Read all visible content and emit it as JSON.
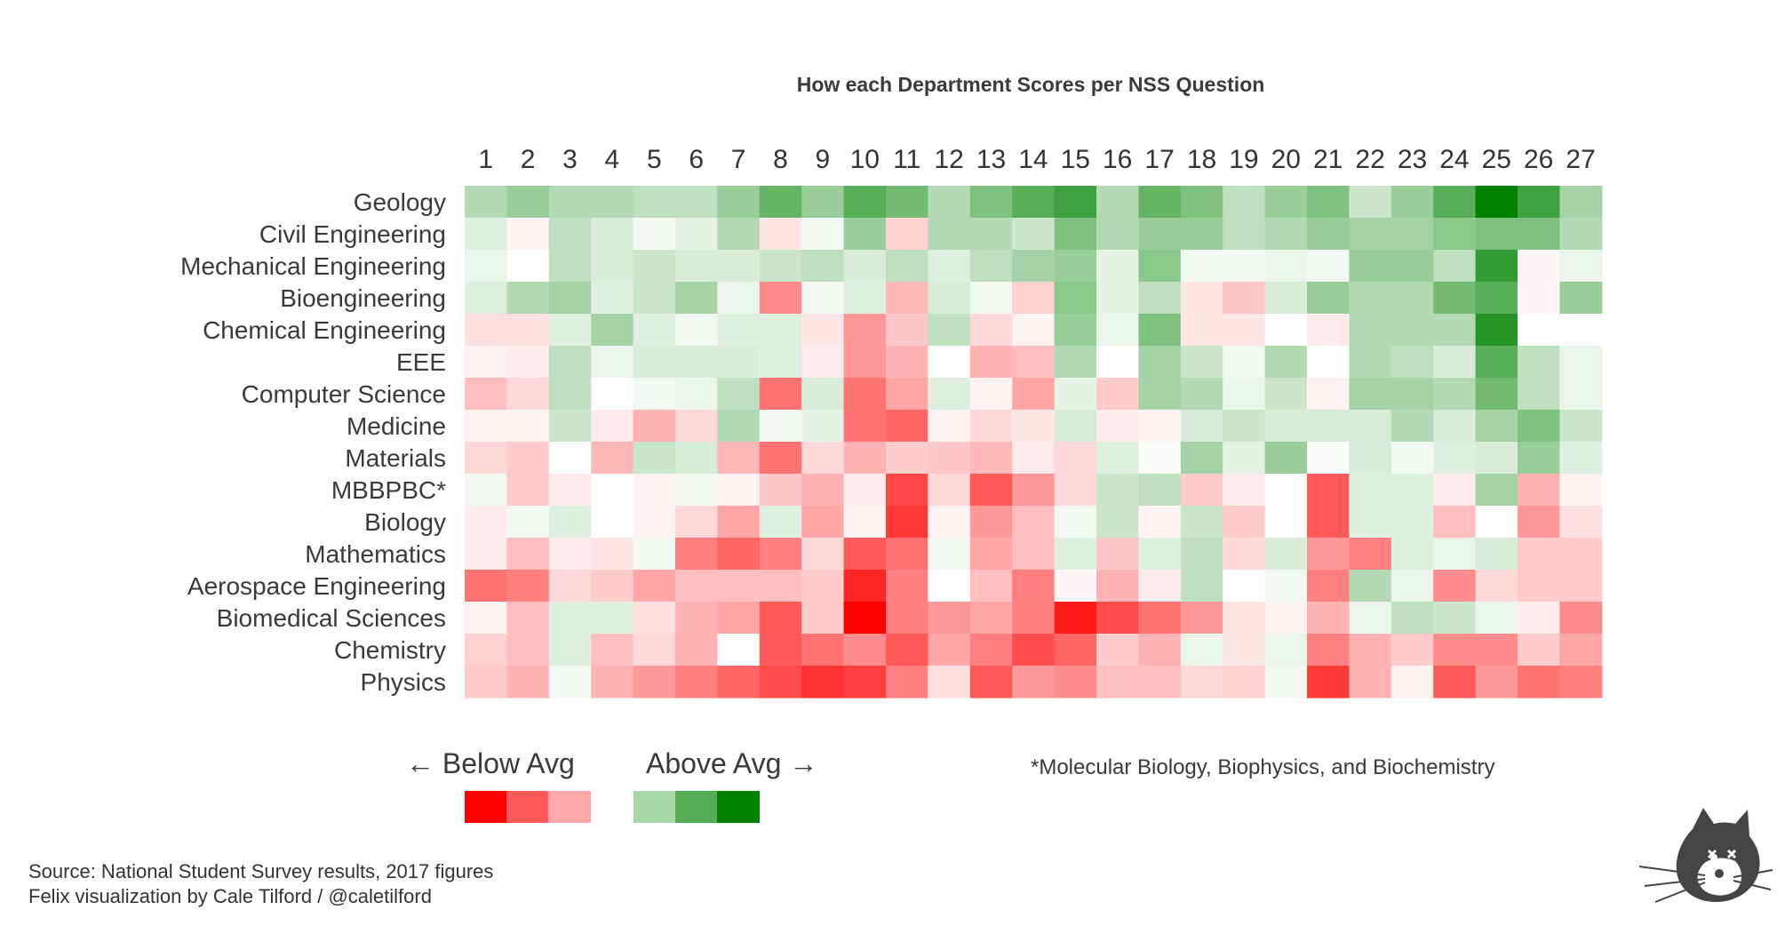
{
  "chart_data": {
    "type": "heatmap",
    "title": "How each Department Scores per NSS Question",
    "columns": [
      "1",
      "2",
      "3",
      "4",
      "5",
      "6",
      "7",
      "8",
      "9",
      "10",
      "11",
      "12",
      "13",
      "14",
      "15",
      "16",
      "17",
      "18",
      "19",
      "20",
      "21",
      "22",
      "23",
      "24",
      "25",
      "26",
      "27"
    ],
    "rows": [
      "Geology",
      "Civil Engineering",
      "Mechanical Engineering",
      "Bioengineering",
      "Chemical Engineering",
      "EEE",
      "Computer Science",
      "Medicine",
      "Materials",
      "MBBPBC*",
      "Biology",
      "Mathematics",
      "Aerospace Engineering",
      "Biomedical Sciences",
      "Chemistry",
      "Physics"
    ],
    "value_range": [
      -1,
      1
    ],
    "value_meaning": "relative score vs average (negative = below, positive = above)",
    "values": [
      [
        0.3,
        0.4,
        0.3,
        0.3,
        0.25,
        0.25,
        0.4,
        0.6,
        0.4,
        0.65,
        0.55,
        0.3,
        0.5,
        0.65,
        0.75,
        0.3,
        0.6,
        0.5,
        0.25,
        0.4,
        0.5,
        0.2,
        0.4,
        0.65,
        1.0,
        0.75,
        0.35
      ],
      [
        0.12,
        -0.05,
        0.25,
        0.15,
        0.05,
        0.1,
        0.3,
        -0.1,
        0.05,
        0.4,
        -0.18,
        0.3,
        0.3,
        0.2,
        0.5,
        0.3,
        0.4,
        0.4,
        0.25,
        0.3,
        0.4,
        0.35,
        0.35,
        0.45,
        0.5,
        0.5,
        0.3
      ],
      [
        0.08,
        0.0,
        0.25,
        0.15,
        0.2,
        0.15,
        0.15,
        0.2,
        0.25,
        0.15,
        0.25,
        0.12,
        0.25,
        0.35,
        0.4,
        0.1,
        0.45,
        0.05,
        0.05,
        0.08,
        0.05,
        0.4,
        0.4,
        0.25,
        0.8,
        -0.03,
        0.08
      ],
      [
        0.12,
        0.3,
        0.35,
        0.12,
        0.2,
        0.35,
        0.08,
        -0.45,
        0.05,
        0.12,
        -0.28,
        0.15,
        0.05,
        -0.18,
        0.45,
        0.1,
        0.25,
        -0.1,
        -0.22,
        0.15,
        0.4,
        0.3,
        0.3,
        0.55,
        0.65,
        -0.03,
        0.4
      ],
      [
        -0.12,
        -0.12,
        0.12,
        0.35,
        0.12,
        0.05,
        0.12,
        0.12,
        -0.1,
        -0.4,
        -0.22,
        0.25,
        -0.15,
        -0.05,
        0.4,
        0.08,
        0.5,
        -0.1,
        -0.1,
        0.0,
        -0.08,
        0.3,
        0.3,
        0.3,
        0.85,
        0.0,
        0.0
      ],
      [
        -0.05,
        -0.08,
        0.25,
        0.08,
        0.15,
        0.15,
        0.15,
        0.12,
        -0.08,
        -0.4,
        -0.3,
        0.0,
        -0.3,
        -0.25,
        0.3,
        0.0,
        0.35,
        0.2,
        0.05,
        0.3,
        0.0,
        0.3,
        0.25,
        0.15,
        0.65,
        0.25,
        0.08
      ],
      [
        -0.25,
        -0.15,
        0.25,
        0.0,
        0.05,
        0.08,
        0.25,
        -0.55,
        0.15,
        -0.55,
        -0.35,
        0.12,
        -0.05,
        -0.35,
        0.1,
        -0.2,
        0.35,
        0.3,
        0.08,
        0.2,
        -0.05,
        0.35,
        0.35,
        0.3,
        0.55,
        0.25,
        0.08
      ],
      [
        -0.05,
        -0.05,
        0.2,
        -0.08,
        -0.3,
        -0.15,
        0.3,
        0.05,
        0.1,
        -0.55,
        -0.6,
        -0.05,
        -0.15,
        -0.1,
        0.15,
        -0.08,
        -0.05,
        0.15,
        0.2,
        0.15,
        0.15,
        0.15,
        0.3,
        0.15,
        0.35,
        0.5,
        0.2
      ],
      [
        -0.15,
        -0.2,
        0.0,
        -0.28,
        0.2,
        0.15,
        -0.28,
        -0.55,
        -0.15,
        -0.3,
        -0.2,
        -0.22,
        -0.28,
        -0.08,
        -0.15,
        0.12,
        0.02,
        0.35,
        0.1,
        0.4,
        0.02,
        0.15,
        0.05,
        0.12,
        0.15,
        0.4,
        0.12
      ],
      [
        0.05,
        -0.2,
        -0.08,
        0.0,
        -0.05,
        0.05,
        -0.05,
        -0.22,
        -0.3,
        -0.08,
        -0.72,
        -0.15,
        -0.65,
        -0.4,
        -0.15,
        0.2,
        0.25,
        -0.2,
        -0.08,
        0.0,
        -0.65,
        0.12,
        0.12,
        -0.08,
        0.35,
        -0.3,
        -0.05
      ],
      [
        -0.08,
        0.05,
        0.12,
        0.0,
        -0.05,
        -0.15,
        -0.35,
        0.12,
        -0.35,
        -0.05,
        -0.78,
        -0.05,
        -0.4,
        -0.25,
        0.05,
        0.2,
        -0.05,
        0.2,
        -0.2,
        0.0,
        -0.65,
        0.12,
        0.12,
        -0.25,
        0.0,
        -0.4,
        -0.12
      ],
      [
        -0.08,
        -0.25,
        -0.08,
        -0.1,
        0.05,
        -0.5,
        -0.6,
        -0.5,
        -0.15,
        -0.65,
        -0.55,
        0.05,
        -0.35,
        -0.25,
        0.12,
        -0.22,
        0.12,
        0.25,
        -0.15,
        0.15,
        -0.4,
        -0.5,
        0.12,
        0.08,
        0.15,
        -0.2,
        -0.2
      ],
      [
        -0.55,
        -0.5,
        -0.15,
        -0.2,
        -0.35,
        -0.25,
        -0.25,
        -0.25,
        -0.2,
        -0.85,
        -0.5,
        0.0,
        -0.25,
        -0.5,
        -0.03,
        -0.3,
        -0.08,
        0.25,
        0.0,
        0.05,
        -0.5,
        0.3,
        0.08,
        -0.45,
        -0.15,
        -0.2,
        -0.2
      ],
      [
        -0.05,
        -0.25,
        0.12,
        0.12,
        -0.12,
        -0.3,
        -0.35,
        -0.65,
        -0.2,
        -1.0,
        -0.5,
        -0.4,
        -0.35,
        -0.5,
        -0.9,
        -0.7,
        -0.55,
        -0.4,
        -0.1,
        -0.05,
        -0.3,
        0.08,
        0.25,
        0.2,
        0.08,
        -0.08,
        -0.45
      ],
      [
        -0.18,
        -0.25,
        0.12,
        -0.25,
        -0.15,
        -0.3,
        0.0,
        -0.65,
        -0.55,
        -0.45,
        -0.65,
        -0.35,
        -0.5,
        -0.7,
        -0.6,
        -0.2,
        -0.3,
        0.08,
        -0.1,
        0.08,
        -0.5,
        -0.3,
        -0.2,
        -0.45,
        -0.45,
        -0.2,
        -0.35
      ],
      [
        -0.2,
        -0.3,
        0.05,
        -0.3,
        -0.4,
        -0.5,
        -0.6,
        -0.7,
        -0.8,
        -0.75,
        -0.5,
        -0.12,
        -0.65,
        -0.4,
        -0.45,
        -0.25,
        -0.25,
        -0.15,
        -0.18,
        0.05,
        -0.78,
        -0.3,
        -0.05,
        -0.65,
        -0.4,
        -0.55,
        -0.5
      ]
    ],
    "colors": {
      "below": [
        "#ff0000",
        "#ff5a5a",
        "#ffa8ab"
      ],
      "above": [
        "#a8d8a8",
        "#54ac54",
        "#008200"
      ]
    }
  },
  "legend": {
    "below_label": "← Below Avg",
    "above_label": "Above Avg →"
  },
  "footnote": "*Molecular Biology, Biophysics, and Biochemistry",
  "source_line1": "Source: National Student Survey results, 2017 figures",
  "source_line2": "Felix visualization by Cale Tilford / @caletilford"
}
